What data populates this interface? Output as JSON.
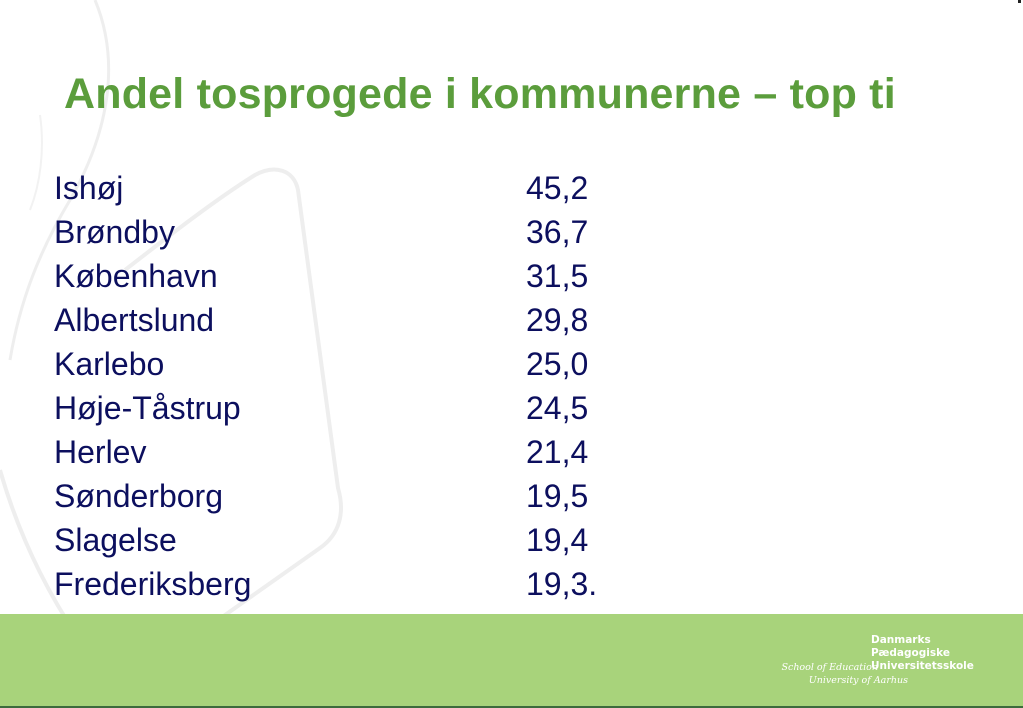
{
  "slide": {
    "title": "Andel tosprogede i kommunerne – top ti",
    "rows": [
      {
        "name": "Ishøj",
        "value": "45,2"
      },
      {
        "name": "Brøndby",
        "value": "36,7"
      },
      {
        "name": "København",
        "value": "31,5"
      },
      {
        "name": "Albertslund",
        "value": "29,8"
      },
      {
        "name": "Karlebo",
        "value": "25,0"
      },
      {
        "name": "Høje-Tåstrup",
        "value": "24,5"
      },
      {
        "name": "Herlev",
        "value": "21,4"
      },
      {
        "name": "Sønderborg",
        "value": "19,5"
      },
      {
        "name": "Slagelse",
        "value": "19,4"
      },
      {
        "name": "Frederiksberg",
        "value": "19,3."
      }
    ]
  },
  "footer": {
    "logo_left_line1": "School of Education",
    "logo_left_line2": "University of Aarhus",
    "logo_right_line1": "Danmarks",
    "logo_right_line2": "Pædagogiske",
    "logo_right_line3": "Universitetsskole"
  },
  "colors": {
    "title": "#5b9d3c",
    "text": "#0c0f5e",
    "footer_band": "#a8d37b"
  }
}
